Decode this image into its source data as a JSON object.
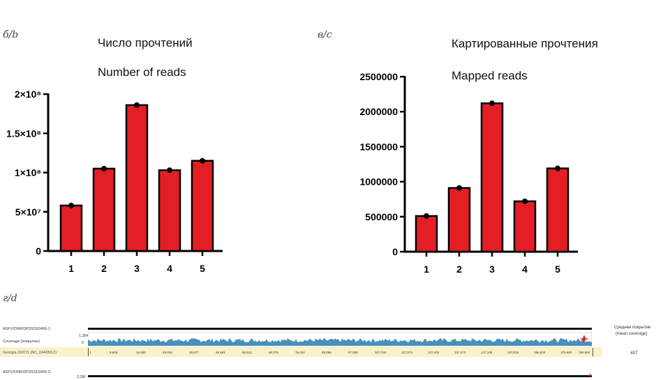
{
  "panels": {
    "b_letter": "б/b",
    "c_letter": "в/c",
    "d_letter": "г/d"
  },
  "chart_data": [
    {
      "type": "bar",
      "title": "Число прочтений",
      "subtitle": "Number of reads",
      "categories": [
        "1",
        "2",
        "3",
        "4",
        "5"
      ],
      "values": [
        58000000,
        105000000,
        186000000,
        103000000,
        115000000
      ],
      "ylim": [
        0,
        200000000
      ],
      "yticks": [
        {
          "value": 0,
          "label": "0"
        },
        {
          "value": 50000000,
          "label": "5×10⁷"
        },
        {
          "value": 100000000,
          "label": "1×10⁸"
        },
        {
          "value": 150000000,
          "label": "1.5×10⁸"
        },
        {
          "value": 200000000,
          "label": "2×10⁸"
        }
      ],
      "bar_color": "#e31e24",
      "grid": false
    },
    {
      "type": "bar",
      "title": "Картированные прочтения",
      "subtitle": "Mapped reads",
      "categories": [
        "1",
        "2",
        "3",
        "4",
        "5"
      ],
      "values": [
        510000,
        910000,
        2120000,
        720000,
        1190000
      ],
      "ylim": [
        0,
        2500000
      ],
      "yticks": [
        {
          "value": 0,
          "label": "0"
        },
        {
          "value": 500000,
          "label": "500000"
        },
        {
          "value": 1000000,
          "label": "1000000"
        },
        {
          "value": 1500000,
          "label": "1500000"
        },
        {
          "value": 2000000,
          "label": "2000000"
        },
        {
          "value": 2500000,
          "label": "2500000"
        }
      ],
      "bar_color": "#e31e24",
      "grid": false
    }
  ],
  "coverage": {
    "sample1": "ASFV/DNR/DP2023/2466-1",
    "coverage_label": "Coverage (покрытие)",
    "ymax": "1,364",
    "ymin": "0",
    "reference": "Georgia 2007/1 (NC_044959.2)",
    "positions": [
      "1",
      "9,505",
      "19,595",
      "29,018",
      "38,877",
      "48,691",
      "58,512",
      "68,375",
      "78,204",
      "88,068",
      "97,938",
      "107,755",
      "117,574",
      "127,404",
      "137,273",
      "147,136",
      "157,015",
      "166,834",
      "176,660",
      "190,584"
    ],
    "mean_header_ru": "Среднее покрытие",
    "mean_header_en": "(mean coverage)",
    "mean_value": "407",
    "sample2": "ASFV/DNR/DP2023/2466-3",
    "ymax2": "2,2M"
  }
}
